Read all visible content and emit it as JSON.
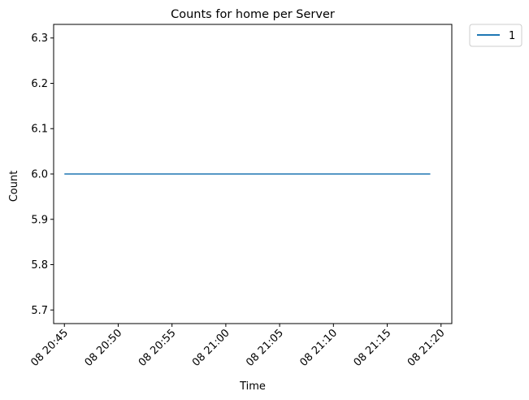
{
  "chart_data": {
    "type": "line",
    "title": "Counts for home per Server",
    "xlabel": "Time",
    "ylabel": "Count",
    "x_tick_labels": [
      "08 20:45",
      "08 20:50",
      "08 20:55",
      "08 21:00",
      "08 21:05",
      "08 21:10",
      "08 21:15",
      "08 21:20"
    ],
    "y_tick_labels": [
      "5.7",
      "5.8",
      "5.9",
      "6.0",
      "6.1",
      "6.2",
      "6.3"
    ],
    "xlim": [
      "08 20:44",
      "08 21:21"
    ],
    "ylim": [
      5.67,
      6.33
    ],
    "grid": false,
    "legend_position": "outside upper right",
    "series": [
      {
        "name": "1",
        "color": "#1f77b4",
        "points": [
          {
            "x": "08 20:45",
            "y": 6.0
          },
          {
            "x": "08 21:19",
            "y": 6.0
          }
        ]
      }
    ]
  }
}
